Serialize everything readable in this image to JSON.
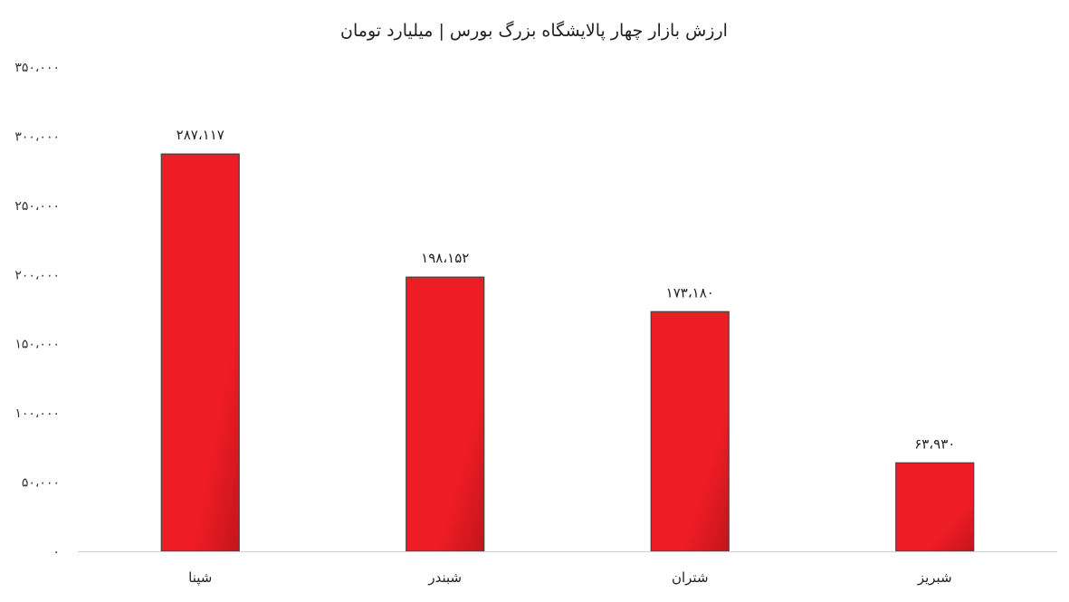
{
  "chart_data": {
    "type": "bar",
    "title": "ارزش بازار چهار پالایشگاه بزرگ بورس | میلیارد تومان",
    "categories": [
      "شپنا",
      "شبندر",
      "شتران",
      "شبریز"
    ],
    "values": [
      287117,
      198152,
      173180,
      63930
    ],
    "data_labels": [
      "۲۸۷،۱۱۷",
      "۱۹۸،۱۵۲",
      "۱۷۳،۱۸۰",
      "۶۳،۹۳۰"
    ],
    "ylim": [
      0,
      350000
    ],
    "y_ticks": [
      0,
      50000,
      100000,
      150000,
      200000,
      250000,
      300000,
      350000
    ],
    "y_tick_labels": [
      "۰",
      "۵۰،۰۰۰",
      "۱۰۰،۰۰۰",
      "۱۵۰،۰۰۰",
      "۲۰۰،۰۰۰",
      "۲۵۰،۰۰۰",
      "۳۰۰،۰۰۰",
      "۳۵۰،۰۰۰"
    ],
    "grid": false,
    "legend": "none",
    "bar_color": "#ee1c24",
    "bar_color_dark": "#c4141c",
    "bar_outline_color": "#444444",
    "axis_color": "#d0d0d0"
  }
}
